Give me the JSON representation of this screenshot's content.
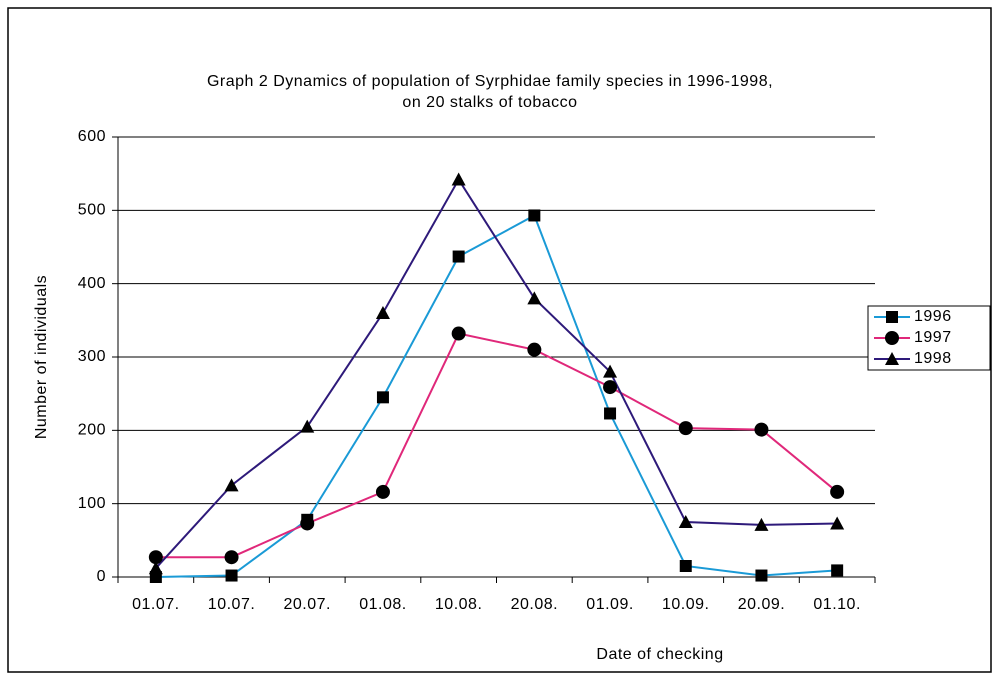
{
  "chart_data": {
    "type": "line",
    "title": [
      "Graph 2 Dynamics of population of Syrphidae family species in 1996-1998,",
      "on 20 stalks of tobacco"
    ],
    "ylabel": "Number of individuals",
    "xlabel": "Date of checking",
    "categories": [
      "01.07.",
      "10.07.",
      "20.07.",
      "01.08.",
      "10.08.",
      "20.08.",
      "01.09.",
      "10.09.",
      "20.09.",
      "01.10."
    ],
    "series": [
      {
        "name": "1996",
        "color": "#1a9ad6",
        "marker": "square",
        "values": [
          0,
          2,
          78,
          245,
          437,
          493,
          223,
          15,
          2,
          9
        ]
      },
      {
        "name": "1997",
        "color": "#e0287a",
        "marker": "circle",
        "values": [
          27,
          27,
          73,
          116,
          332,
          310,
          259,
          203,
          201,
          116
        ]
      },
      {
        "name": "1998",
        "color": "#2e1a7a",
        "marker": "triangle",
        "values": [
          12,
          125,
          205,
          360,
          542,
          380,
          280,
          75,
          71,
          73
        ]
      }
    ],
    "ylim": [
      0,
      600
    ],
    "yticks": [
      0,
      100,
      200,
      300,
      400,
      500,
      600
    ],
    "grid": true,
    "legend": "right"
  }
}
